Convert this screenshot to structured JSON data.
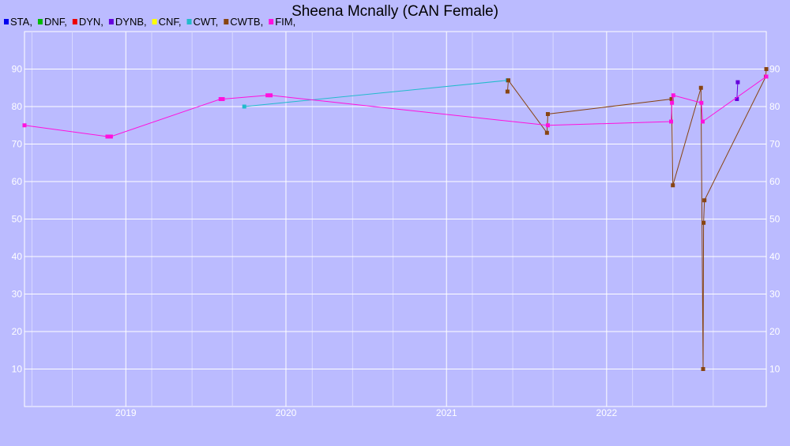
{
  "chart_data": {
    "type": "line",
    "title": "Sheena Mcnally (CAN Female)",
    "xlabel": "",
    "ylabel": "",
    "xlim": [
      "2018-05-15",
      "2022-12-31"
    ],
    "ylim": [
      0,
      100
    ],
    "x_ticks": [
      "2019",
      "2020",
      "2021",
      "2022"
    ],
    "y_ticks": [
      10,
      20,
      30,
      40,
      50,
      60,
      70,
      80,
      90
    ],
    "grid": true,
    "legend_position": "top-left",
    "background": "#bbbbff",
    "series": [
      {
        "name": "STA,",
        "color": "#0000ee",
        "points": []
      },
      {
        "name": "DNF,",
        "color": "#00bb00",
        "points": []
      },
      {
        "name": "DYN,",
        "color": "#ee0000",
        "points": []
      },
      {
        "name": "DYNB,",
        "color": "#6600dd",
        "points": [
          [
            "2022-10-25",
            82
          ],
          [
            "2022-10-27",
            86.5
          ]
        ]
      },
      {
        "name": "CNF,",
        "color": "#ffff00",
        "points": []
      },
      {
        "name": "CWT,",
        "color": "#22bbcc",
        "points": [
          [
            "2019-09-28",
            80
          ],
          [
            "2021-05-20",
            87
          ]
        ]
      },
      {
        "name": "CWTB,",
        "color": "#884411",
        "points": [
          [
            "2021-05-20",
            84
          ],
          [
            "2021-05-22",
            87
          ],
          [
            "2021-08-18",
            73
          ],
          [
            "2021-08-20",
            78
          ],
          [
            "2022-05-29",
            82
          ],
          [
            "2022-06-01",
            59
          ],
          [
            "2022-08-04",
            85
          ],
          [
            "2022-08-09",
            10
          ],
          [
            "2022-08-10",
            49
          ],
          [
            "2022-08-12",
            55
          ],
          [
            "2022-12-30",
            88
          ],
          [
            "2022-12-31",
            90
          ]
        ]
      },
      {
        "name": "FIM,",
        "color": "#ff11dd",
        "points": [
          [
            "2018-05-15",
            75
          ],
          [
            "2018-11-20",
            72
          ],
          [
            "2018-11-28",
            72
          ],
          [
            "2019-08-05",
            82
          ],
          [
            "2019-08-10",
            82
          ],
          [
            "2019-11-20",
            83
          ],
          [
            "2019-11-27",
            83
          ],
          [
            "2021-08-20",
            75
          ],
          [
            "2022-05-28",
            76
          ],
          [
            "2022-05-30",
            81
          ],
          [
            "2022-06-02",
            83
          ],
          [
            "2022-08-05",
            81
          ],
          [
            "2022-08-08",
            76
          ],
          [
            "2022-12-31",
            88
          ]
        ]
      }
    ]
  }
}
